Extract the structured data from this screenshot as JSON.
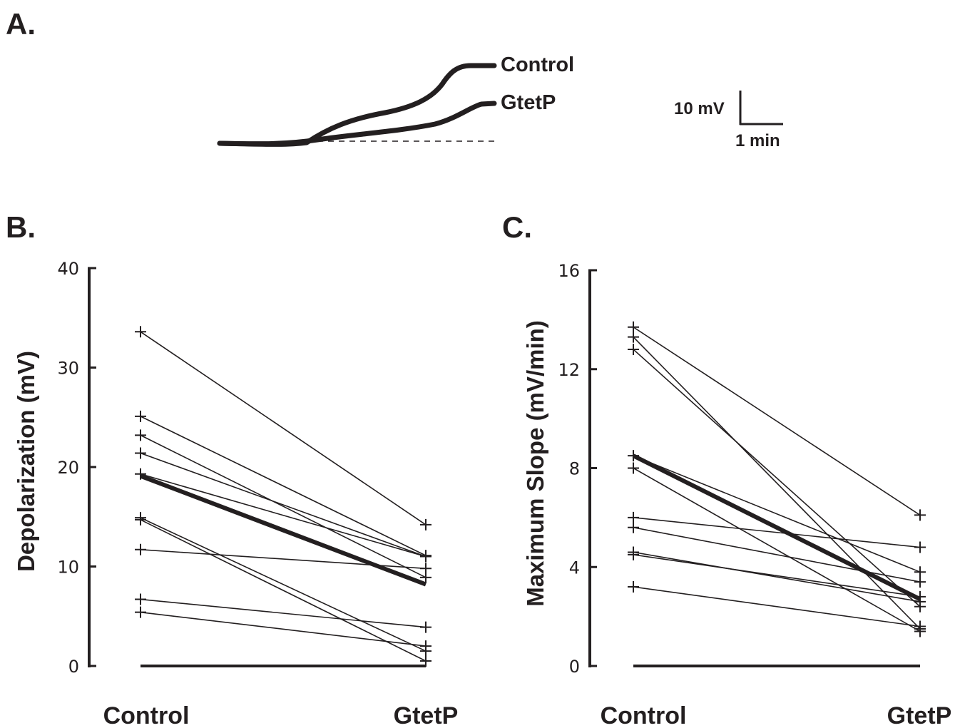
{
  "panel_labels": {
    "a": "A.",
    "b": "B.",
    "c": "C."
  },
  "chart_data": [
    {
      "type": "line",
      "panel": "A.",
      "series_labels": [
        "Control",
        "GtetP"
      ],
      "scale_bar": {
        "y": "10 mV",
        "x": "1 min"
      },
      "baseline": "dashed"
    },
    {
      "type": "line",
      "panel": "B.",
      "categories": [
        "Control",
        "GtetP"
      ],
      "ylabel": "Depolarization (mV)",
      "ylim": [
        0,
        40
      ],
      "yticks": [
        "0",
        "10",
        "20",
        "30",
        "40"
      ],
      "pairs": [
        [
          33.6,
          14.2
        ],
        [
          25.1,
          11.1
        ],
        [
          23.2,
          8.9
        ],
        [
          21.4,
          11.0
        ],
        [
          19.3,
          11.0
        ],
        [
          14.9,
          1.5
        ],
        [
          14.7,
          0.5
        ],
        [
          11.7,
          9.8
        ],
        [
          6.7,
          3.9
        ],
        [
          5.4,
          2.0
        ],
        [
          0,
          0
        ]
      ],
      "mean": [
        19.1,
        8.2
      ]
    },
    {
      "type": "line",
      "panel": "C.",
      "categories": [
        "Control",
        "GtetP"
      ],
      "ylabel": "Maximum Slope (mV/min)",
      "ylim": [
        0,
        16
      ],
      "yticks": [
        "0",
        "4",
        "8",
        "12",
        "16"
      ],
      "pairs": [
        [
          13.7,
          6.1
        ],
        [
          13.3,
          1.5
        ],
        [
          12.8,
          2.4
        ],
        [
          8.5,
          3.8
        ],
        [
          8.0,
          1.4
        ],
        [
          6.0,
          4.8
        ],
        [
          5.6,
          3.4
        ],
        [
          4.6,
          2.6
        ],
        [
          4.5,
          2.8
        ],
        [
          3.2,
          1.6
        ],
        [
          0,
          0
        ]
      ],
      "mean": [
        8.5,
        2.7
      ]
    }
  ]
}
